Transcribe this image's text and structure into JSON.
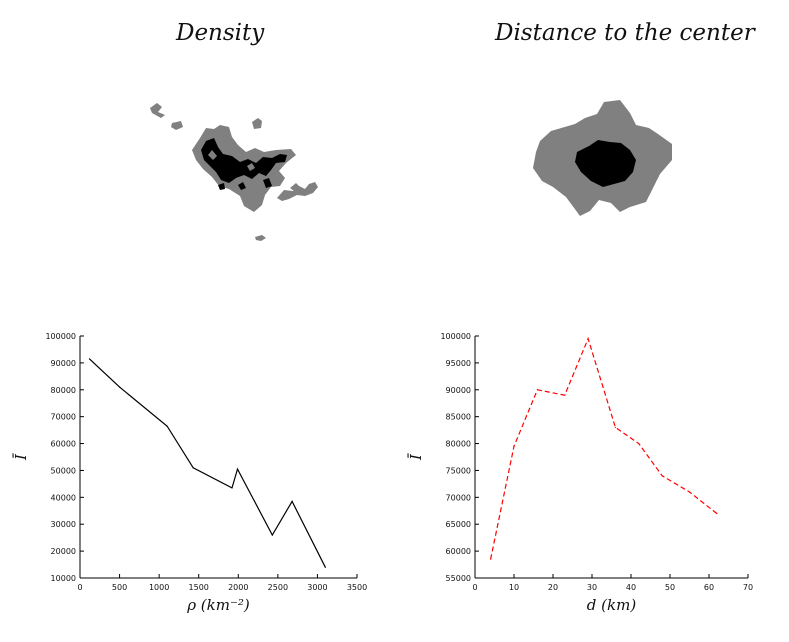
{
  "maps": [
    {
      "title": "Density"
    },
    {
      "title": "Distance to the center"
    }
  ],
  "colors": {
    "map_fill": "#808080",
    "map_core": "#000000",
    "line_left": "#000000",
    "line_right": "#ff0000"
  },
  "chart_data": [
    {
      "type": "line",
      "xlabel": "ρ (km⁻²)",
      "ylabel": "Ī",
      "xlim": [
        0,
        3500
      ],
      "ylim": [
        10000,
        100000
      ],
      "xticks": [
        0,
        500,
        1000,
        1500,
        2000,
        2500,
        3000,
        3500
      ],
      "yticks": [
        10000,
        20000,
        30000,
        40000,
        50000,
        60000,
        70000,
        80000,
        90000,
        100000
      ],
      "line_style": "solid",
      "color": "#000000",
      "x": [
        120,
        500,
        1100,
        1430,
        1920,
        1990,
        2430,
        2680,
        3100
      ],
      "y": [
        91500,
        81000,
        66500,
        51000,
        43500,
        50500,
        26000,
        38500,
        14000
      ]
    },
    {
      "type": "line",
      "xlabel": "d (km)",
      "ylabel": "Ī",
      "xlim": [
        0,
        70
      ],
      "ylim": [
        55000,
        100000
      ],
      "xticks": [
        0,
        10,
        20,
        30,
        40,
        50,
        60,
        70
      ],
      "yticks": [
        55000,
        60000,
        65000,
        70000,
        75000,
        80000,
        85000,
        90000,
        95000,
        100000
      ],
      "line_style": "dashed",
      "color": "#ff0000",
      "x": [
        4,
        10,
        16,
        23,
        29,
        36,
        42,
        48,
        55,
        62
      ],
      "y": [
        58500,
        79500,
        90000,
        89000,
        99500,
        83000,
        80000,
        74000,
        71000,
        67000
      ]
    }
  ]
}
